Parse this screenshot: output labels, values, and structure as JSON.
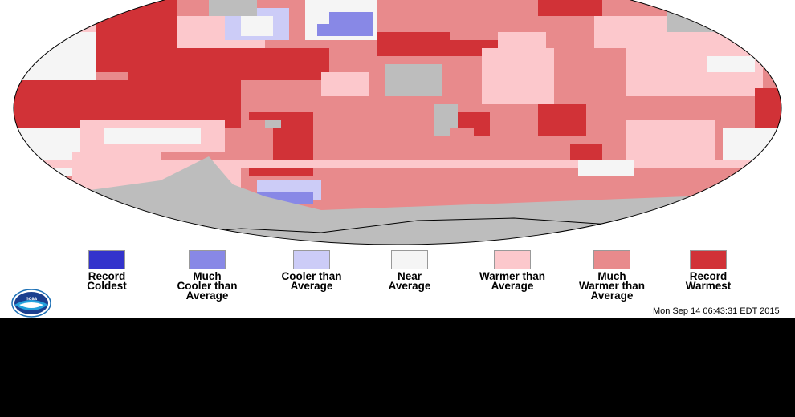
{
  "map": {
    "legend": [
      {
        "label": "Record\nColdest",
        "color": "#3333cc"
      },
      {
        "label": "Much\nCooler than\nAverage",
        "color": "#8888e6"
      },
      {
        "label": "Cooler than\nAverage",
        "color": "#ccccf7"
      },
      {
        "label": "Near\nAverage",
        "color": "#f5f5f5"
      },
      {
        "label": "Warmer than\nAverage",
        "color": "#fcc8cc"
      },
      {
        "label": "Much\nWarmer than\nAverage",
        "color": "#e88a8c"
      },
      {
        "label": "Record\nWarmest",
        "color": "#d13237"
      }
    ],
    "no_data_color": "#bdbdbd",
    "logo_text": "NOAA",
    "timestamp": "Mon Sep 14 06:43:31 EDT 2015"
  }
}
